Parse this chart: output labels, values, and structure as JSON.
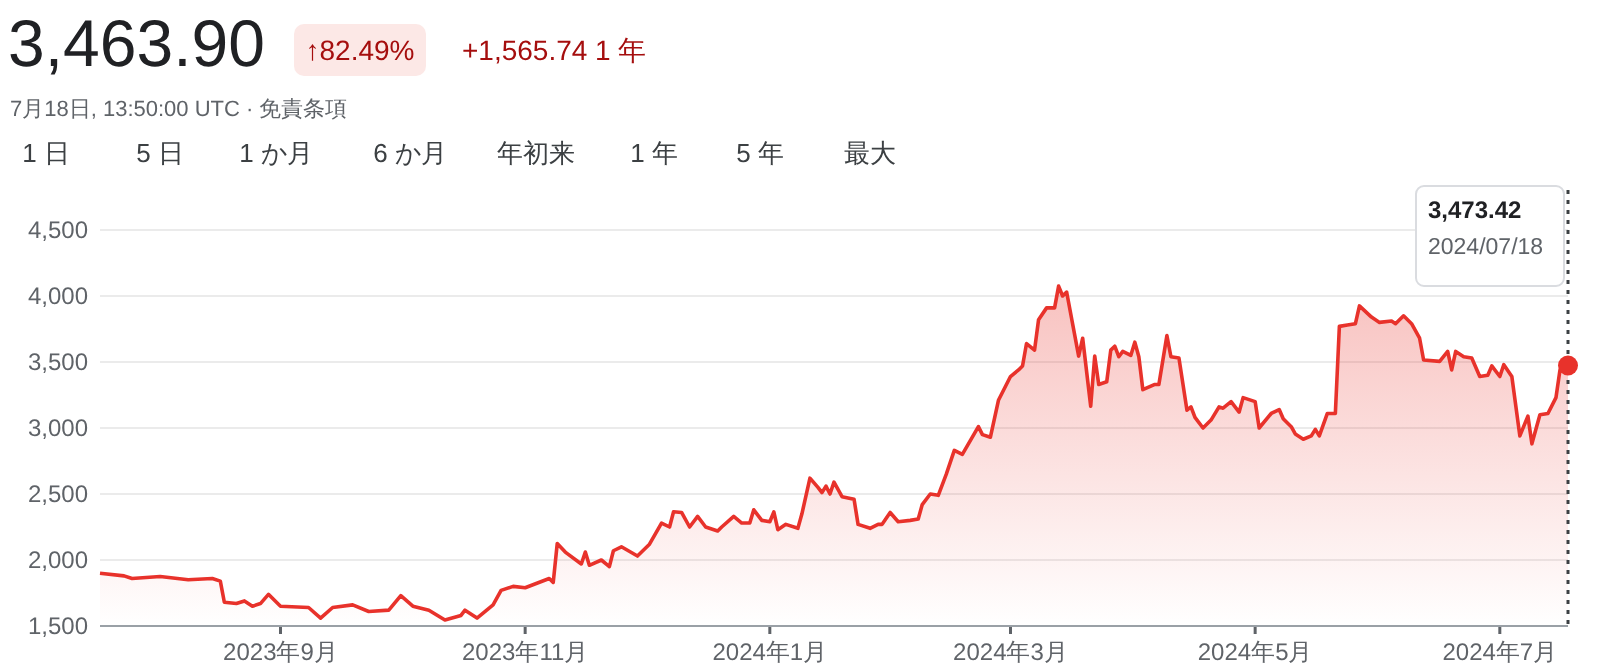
{
  "chart_data": {
    "type": "area",
    "title": "3,463.90",
    "subtitle": "7月18日, 13:50:00 UTC · 免責条項",
    "annotations": [
      "↑82.49%",
      "+1,565.74 1 年",
      "1 日",
      "5 日",
      "1 か月",
      "6 か月",
      "年初来",
      "1 年",
      "5 年",
      "最大",
      "3,473.42",
      "2024/07/18"
    ],
    "xlim": [
      "2023-07-18",
      "2024-07-18"
    ],
    "xticks": [
      {
        "value": "2023-09-01",
        "label": "2023年9月"
      },
      {
        "value": "2023-11-01",
        "label": "2023年11月"
      },
      {
        "value": "2024-01-01",
        "label": "2024年1月"
      },
      {
        "value": "2024-03-01",
        "label": "2024年3月"
      },
      {
        "value": "2024-05-01",
        "label": "2024年5月"
      },
      {
        "value": "2024-07-01",
        "label": "2024年7月"
      }
    ],
    "ylim": [
      1500,
      4500
    ],
    "yticks": [
      {
        "value": 1500,
        "label": "1,500"
      },
      {
        "value": 2000,
        "label": "2,000"
      },
      {
        "value": 2500,
        "label": "2,500"
      },
      {
        "value": 3000,
        "label": "3,000"
      },
      {
        "value": 3500,
        "label": "3,500"
      },
      {
        "value": 4000,
        "label": "4,000"
      },
      {
        "value": 4500,
        "label": "4,500"
      }
    ],
    "grid": "y",
    "ref_lines": [
      {
        "axis": "x",
        "value": "2024-07-18",
        "label": null,
        "color": "#3c4043",
        "line_style": "dotted"
      }
    ],
    "series": [
      {
        "color": "#e8322b",
        "x": [
          "2023-07-18",
          "2023-07-24",
          "2023-07-26",
          "2023-08-02",
          "2023-08-09",
          "2023-08-15",
          "2023-08-17",
          "2023-08-18",
          "2023-08-21",
          "2023-08-23",
          "2023-08-25",
          "2023-08-27",
          "2023-08-29",
          "2023-09-01",
          "2023-09-08",
          "2023-09-11",
          "2023-09-14",
          "2023-09-19",
          "2023-09-23",
          "2023-09-28",
          "2023-10-01",
          "2023-10-04",
          "2023-10-08",
          "2023-10-12",
          "2023-10-16",
          "2023-10-17",
          "2023-10-20",
          "2023-10-24",
          "2023-10-26",
          "2023-10-29",
          "2023-11-01",
          "2023-11-07",
          "2023-11-08",
          "2023-11-09",
          "2023-11-11",
          "2023-11-15",
          "2023-11-16",
          "2023-11-17",
          "2023-11-20",
          "2023-11-22",
          "2023-11-23",
          "2023-11-25",
          "2023-11-29",
          "2023-12-02",
          "2023-12-05",
          "2023-12-07",
          "2023-12-08",
          "2023-12-10",
          "2023-12-12",
          "2023-12-14",
          "2023-12-16",
          "2023-12-19",
          "2023-12-20",
          "2023-12-23",
          "2023-12-25",
          "2023-12-27",
          "2023-12-28",
          "2023-12-30",
          "2024-01-01",
          "2024-01-02",
          "2024-01-03",
          "2024-01-05",
          "2024-01-08",
          "2024-01-09",
          "2024-01-11",
          "2024-01-13",
          "2024-01-14",
          "2024-01-15",
          "2024-01-16",
          "2024-01-17",
          "2024-01-19",
          "2024-01-22",
          "2024-01-23",
          "2024-01-26",
          "2024-01-28",
          "2024-01-29",
          "2024-01-31",
          "2024-02-02",
          "2024-02-05",
          "2024-02-07",
          "2024-02-08",
          "2024-02-10",
          "2024-02-12",
          "2024-02-14",
          "2024-02-16",
          "2024-02-18",
          "2024-02-22",
          "2024-02-23",
          "2024-02-25",
          "2024-02-27",
          "2024-03-01",
          "2024-03-03",
          "2024-03-04",
          "2024-03-05",
          "2024-03-07",
          "2024-03-08",
          "2024-03-10",
          "2024-03-12",
          "2024-03-13",
          "2024-03-14",
          "2024-03-15",
          "2024-03-18",
          "2024-03-19",
          "2024-03-21",
          "2024-03-22",
          "2024-03-23",
          "2024-03-25",
          "2024-03-26",
          "2024-03-27",
          "2024-03-28",
          "2024-03-29",
          "2024-03-31",
          "2024-04-01",
          "2024-04-02",
          "2024-04-03",
          "2024-04-06",
          "2024-04-07",
          "2024-04-09",
          "2024-04-10",
          "2024-04-12",
          "2024-04-14",
          "2024-04-15",
          "2024-04-16",
          "2024-04-18",
          "2024-04-20",
          "2024-04-22",
          "2024-04-23",
          "2024-04-25",
          "2024-04-27",
          "2024-04-28",
          "2024-05-01",
          "2024-05-02",
          "2024-05-05",
          "2024-05-07",
          "2024-05-08",
          "2024-05-10",
          "2024-05-11",
          "2024-05-13",
          "2024-05-15",
          "2024-05-16",
          "2024-05-17",
          "2024-05-19",
          "2024-05-21",
          "2024-05-22",
          "2024-05-24",
          "2024-05-26",
          "2024-05-27",
          "2024-05-30",
          "2024-06-01",
          "2024-06-04",
          "2024-06-05",
          "2024-06-07",
          "2024-06-09",
          "2024-06-11",
          "2024-06-12",
          "2024-06-16",
          "2024-06-18",
          "2024-06-19",
          "2024-06-20",
          "2024-06-22",
          "2024-06-24",
          "2024-06-26",
          "2024-06-28",
          "2024-06-29",
          "2024-07-01",
          "2024-07-02",
          "2024-07-04",
          "2024-07-06",
          "2024-07-08",
          "2024-07-09",
          "2024-07-11",
          "2024-07-13",
          "2024-07-15",
          "2024-07-16",
          "2024-07-17",
          "2024-07-18"
        ],
        "values": [
          1900,
          1880,
          1860,
          1875,
          1850,
          1860,
          1840,
          1680,
          1670,
          1690,
          1650,
          1670,
          1740,
          1650,
          1640,
          1560,
          1640,
          1660,
          1610,
          1620,
          1730,
          1650,
          1620,
          1545,
          1580,
          1620,
          1560,
          1660,
          1770,
          1800,
          1790,
          1860,
          1830,
          2125,
          2060,
          1970,
          2060,
          1960,
          2000,
          1950,
          2070,
          2100,
          2030,
          2120,
          2280,
          2250,
          2365,
          2360,
          2250,
          2330,
          2250,
          2220,
          2250,
          2330,
          2280,
          2280,
          2380,
          2300,
          2290,
          2365,
          2230,
          2270,
          2240,
          2350,
          2620,
          2550,
          2510,
          2560,
          2500,
          2590,
          2480,
          2460,
          2270,
          2240,
          2270,
          2270,
          2360,
          2290,
          2300,
          2310,
          2420,
          2500,
          2490,
          2650,
          2830,
          2800,
          3010,
          2950,
          2930,
          3210,
          3390,
          3440,
          3470,
          3640,
          3590,
          3820,
          3910,
          3910,
          4075,
          4000,
          4030,
          3545,
          3680,
          3165,
          3545,
          3330,
          3350,
          3590,
          3620,
          3540,
          3580,
          3550,
          3650,
          3540,
          3290,
          3330,
          3330,
          3700,
          3540,
          3530,
          3135,
          3160,
          3080,
          3000,
          3060,
          3160,
          3150,
          3200,
          3120,
          3230,
          3200,
          3000,
          3110,
          3140,
          3070,
          3010,
          2955,
          2915,
          2940,
          2990,
          2940,
          3110,
          3110,
          3770,
          3780,
          3790,
          3925,
          3840,
          3800,
          3810,
          3790,
          3850,
          3790,
          3680,
          3515,
          3505,
          3580,
          3440,
          3580,
          3540,
          3530,
          3390,
          3400,
          3470,
          3390,
          3480,
          3390,
          2940,
          3090,
          2880,
          3100,
          3110,
          3230,
          3440,
          3440,
          3473.42
        ]
      }
    ]
  }
}
